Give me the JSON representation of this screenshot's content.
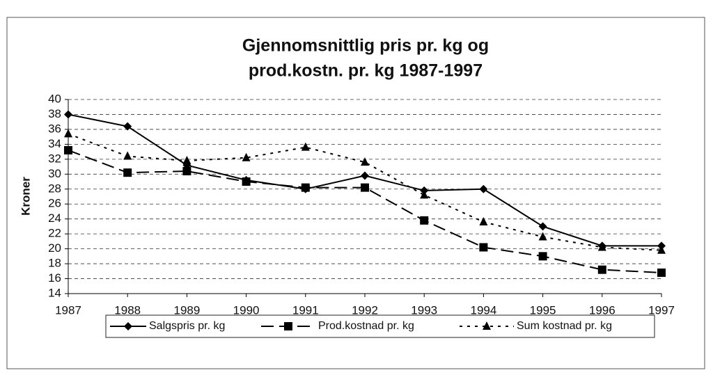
{
  "chart_data": {
    "type": "line",
    "title": [
      "Gjennomsnittlig pris pr. kg og",
      "prod.kostn. pr. kg 1987-1997"
    ],
    "y_label": "Kroner",
    "categories": [
      "1987",
      "1988",
      "1989",
      "1990",
      "1991",
      "1992",
      "1993",
      "1994",
      "1995",
      "1996",
      "1997"
    ],
    "series": [
      {
        "name": "Salgspris pr. kg",
        "color": "#000000",
        "dash": "solid",
        "marker": "diamond",
        "values": [
          38,
          36.4,
          31.2,
          29.2,
          28,
          29.8,
          27.8,
          28,
          23,
          20.4,
          20.4
        ]
      },
      {
        "name": "Prod.kostnad pr. kg",
        "color": "#000000",
        "dash": "long",
        "marker": "square",
        "values": [
          33.2,
          30.2,
          30.4,
          29,
          28.2,
          28.2,
          23.8,
          20.2,
          19,
          17.2,
          16.8
        ]
      },
      {
        "name": "Sum kostnad pr. kg",
        "color": "#000000",
        "dash": "short",
        "marker": "triangle",
        "values": [
          35.4,
          32.4,
          31.8,
          32.2,
          33.6,
          31.6,
          27.2,
          23.6,
          21.6,
          20.2,
          19.8
        ]
      }
    ],
    "ylim": [
      14,
      40
    ],
    "yticks": [
      14,
      16,
      18,
      20,
      22,
      24,
      26,
      28,
      30,
      32,
      34,
      36,
      38,
      40
    ],
    "grid": true,
    "legend": "bottom"
  }
}
